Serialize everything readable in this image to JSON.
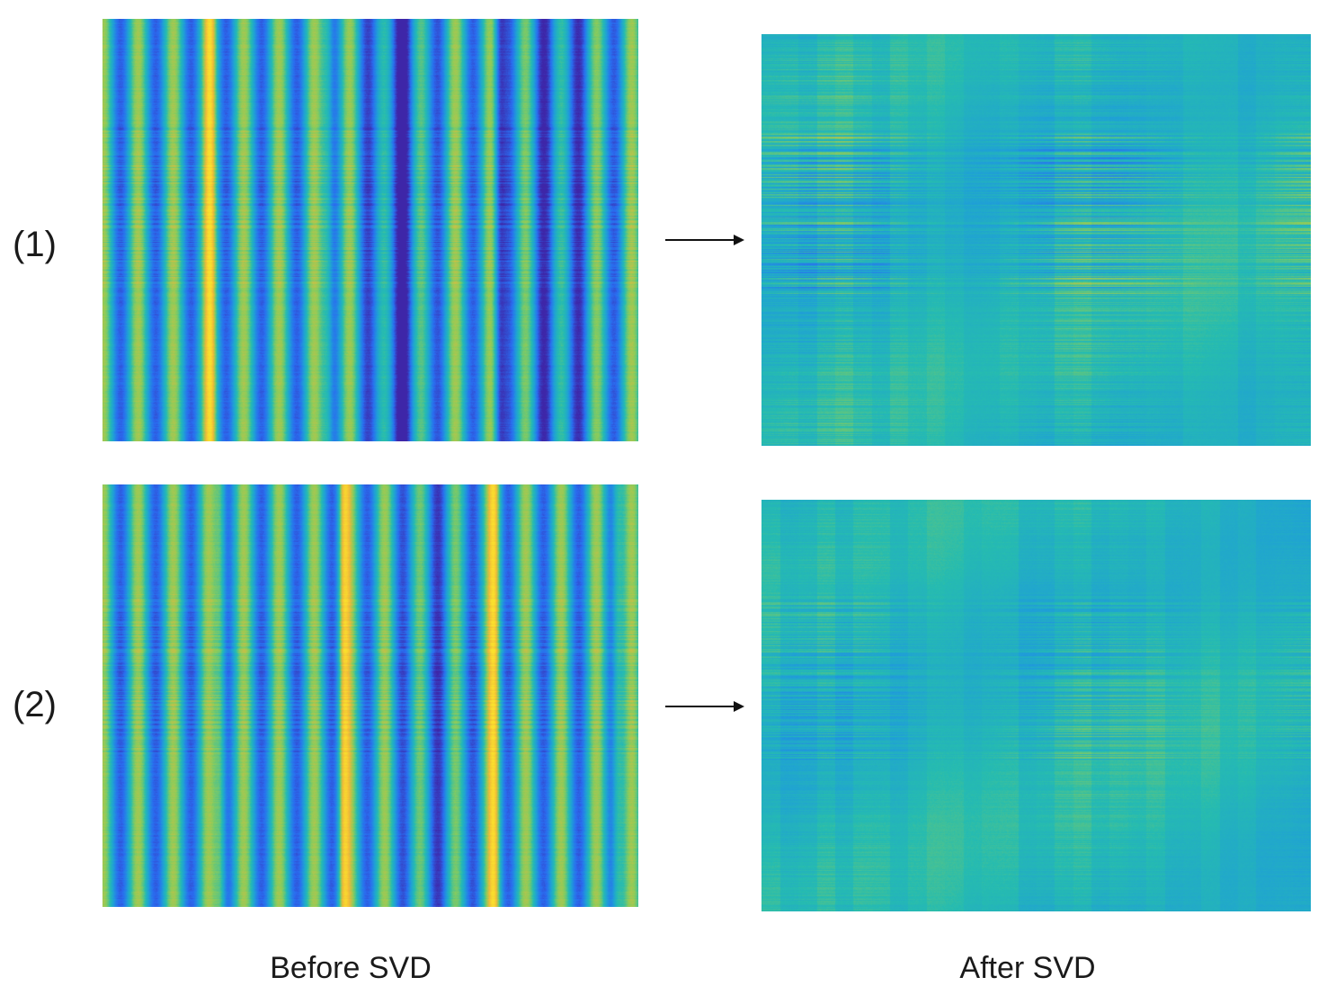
{
  "rows": [
    {
      "label": "(1)"
    },
    {
      "label": "(2)"
    }
  ],
  "columns": {
    "before": "Before SVD",
    "after": "After SVD"
  },
  "colormap": [
    "#3e26a8",
    "#2a6cf0",
    "#1f9fd8",
    "#26bcb0",
    "#8ccc5a",
    "#f0b83a",
    "#fbe12c"
  ],
  "panels_note_colors": {
    "arrow": "#111111"
  }
}
